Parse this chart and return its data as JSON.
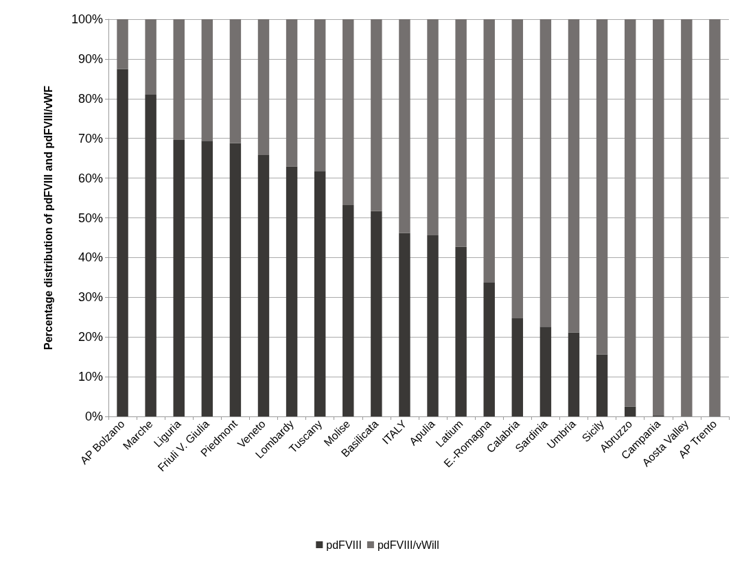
{
  "chart_data": {
    "type": "bar",
    "stacked": true,
    "ylabel": "Percentage distribution of pdFVIII and pdFVIII/vWF",
    "categories": [
      "AP Bolzano",
      "Marche",
      "Liguria",
      "Friuli V. Giulia",
      "Piedmont",
      "Veneto",
      "Lombardy",
      "Tuscany",
      "Molise",
      "Basilicata",
      "ITALY",
      "Apulia",
      "Latium",
      "E.-Romagna",
      "Calabria",
      "Sardinia",
      "Umbria",
      "Sicily",
      "Abruzzo",
      "Campania",
      "Aosta Valley",
      "AP Trento"
    ],
    "series": [
      {
        "name": "pdFVIII",
        "color": "#3a3836",
        "values": [
          87.5,
          81.0,
          69.6,
          69.4,
          68.8,
          65.8,
          62.9,
          61.8,
          53.2,
          51.7,
          46.2,
          45.6,
          42.7,
          33.7,
          24.7,
          22.6,
          21.1,
          15.6,
          2.5,
          0.3,
          0,
          0
        ]
      },
      {
        "name": "pdFVIII/vWill",
        "color": "#74706f",
        "values": [
          12.5,
          19.0,
          30.4,
          30.6,
          31.2,
          34.2,
          37.1,
          38.2,
          46.8,
          48.3,
          53.8,
          54.4,
          57.3,
          66.3,
          75.3,
          77.4,
          78.9,
          84.4,
          97.5,
          99.7,
          100,
          100
        ]
      }
    ],
    "ylim": [
      0,
      100
    ],
    "yticks": [
      {
        "value": 0,
        "label": "0%"
      },
      {
        "value": 10,
        "label": "10%"
      },
      {
        "value": 20,
        "label": "20%"
      },
      {
        "value": 30,
        "label": "30%"
      },
      {
        "value": 40,
        "label": "40%"
      },
      {
        "value": 50,
        "label": "50%"
      },
      {
        "value": 60,
        "label": "60%"
      },
      {
        "value": 70,
        "label": "70%"
      },
      {
        "value": 80,
        "label": "80%"
      },
      {
        "value": 90,
        "label": "90%"
      },
      {
        "value": 100,
        "label": "100%"
      }
    ],
    "grid": "y",
    "legend": "bottom"
  }
}
